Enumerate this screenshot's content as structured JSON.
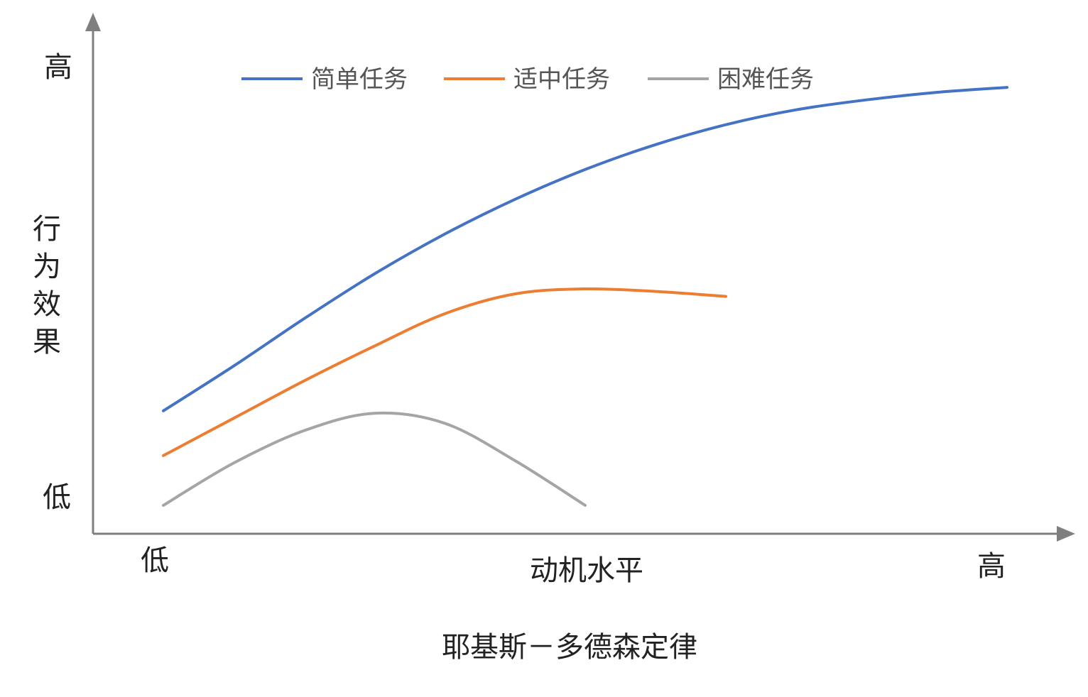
{
  "chart_data": {
    "type": "line",
    "title": "耶基斯－多德森定律",
    "xlabel": "动机水平",
    "ylabel": "行为效果",
    "x_tick_low": "低",
    "x_tick_high": "高",
    "y_tick_low": "低",
    "y_tick_high": "高",
    "xlim": [
      0,
      12
    ],
    "ylim": [
      0,
      10
    ],
    "grid": false,
    "legend_position": "top",
    "series": [
      {
        "name": "简单任务",
        "color": "#4472C4",
        "points": [
          [
            0,
            2.1
          ],
          [
            1,
            3.0
          ],
          [
            2,
            3.95
          ],
          [
            3,
            4.85
          ],
          [
            4,
            5.65
          ],
          [
            5,
            6.35
          ],
          [
            6,
            6.95
          ],
          [
            7,
            7.45
          ],
          [
            8,
            7.85
          ],
          [
            9,
            8.15
          ],
          [
            10,
            8.35
          ],
          [
            11,
            8.5
          ],
          [
            12,
            8.6
          ]
        ]
      },
      {
        "name": "适中任务",
        "color": "#ED7D31",
        "points": [
          [
            0,
            1.2
          ],
          [
            1,
            1.95
          ],
          [
            2,
            2.7
          ],
          [
            3,
            3.4
          ],
          [
            4,
            4.05
          ],
          [
            5,
            4.45
          ],
          [
            6,
            4.55
          ],
          [
            7,
            4.5
          ],
          [
            8,
            4.4
          ]
        ]
      },
      {
        "name": "困难任务",
        "color": "#A5A5A5",
        "points": [
          [
            0,
            0.2
          ],
          [
            1,
            1.05
          ],
          [
            2,
            1.7
          ],
          [
            3,
            2.05
          ],
          [
            4,
            1.85
          ],
          [
            5,
            1.1
          ],
          [
            6,
            0.2
          ]
        ]
      }
    ]
  }
}
